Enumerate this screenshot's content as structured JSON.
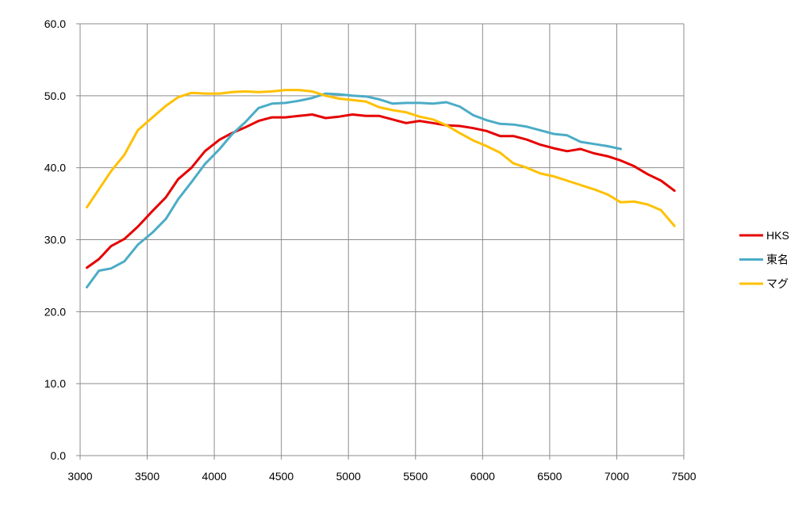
{
  "chart_data": {
    "type": "line",
    "title": "",
    "xlabel": "",
    "ylabel": "",
    "xlim": [
      3000,
      7500
    ],
    "ylim": [
      0,
      60
    ],
    "x_ticks": [
      3000,
      3500,
      4000,
      4500,
      5000,
      5500,
      6000,
      6500,
      7000,
      7500
    ],
    "x_tick_labels": [
      "3000",
      "3500",
      "4000",
      "4500",
      "5000",
      "5500",
      "6000",
      "6500",
      "7000",
      "7500"
    ],
    "y_ticks": [
      0,
      10,
      20,
      30,
      40,
      50,
      60
    ],
    "y_tick_labels": [
      "0.0",
      "10.0",
      "20.0",
      "30.0",
      "40.0",
      "50.0",
      "60.0"
    ],
    "grid": true,
    "legend_position": "right",
    "series": [
      {
        "name": "HKS",
        "color": "#e60000",
        "points": [
          [
            3050,
            26.1
          ],
          [
            3140,
            27.3
          ],
          [
            3230,
            29.1
          ],
          [
            3330,
            30.1
          ],
          [
            3430,
            31.8
          ],
          [
            3540,
            34.0
          ],
          [
            3640,
            35.9
          ],
          [
            3730,
            38.4
          ],
          [
            3830,
            40.0
          ],
          [
            3930,
            42.3
          ],
          [
            4040,
            43.9
          ],
          [
            4130,
            44.8
          ],
          [
            4230,
            45.6
          ],
          [
            4330,
            46.5
          ],
          [
            4430,
            47.0
          ],
          [
            4530,
            47.0
          ],
          [
            4630,
            47.2
          ],
          [
            4730,
            47.4
          ],
          [
            4830,
            46.9
          ],
          [
            4930,
            47.1
          ],
          [
            5030,
            47.4
          ],
          [
            5130,
            47.2
          ],
          [
            5230,
            47.2
          ],
          [
            5330,
            46.7
          ],
          [
            5430,
            46.2
          ],
          [
            5530,
            46.5
          ],
          [
            5630,
            46.2
          ],
          [
            5730,
            45.9
          ],
          [
            5830,
            45.8
          ],
          [
            5930,
            45.5
          ],
          [
            6030,
            45.1
          ],
          [
            6130,
            44.4
          ],
          [
            6230,
            44.4
          ],
          [
            6330,
            43.9
          ],
          [
            6430,
            43.2
          ],
          [
            6530,
            42.7
          ],
          [
            6630,
            42.3
          ],
          [
            6730,
            42.6
          ],
          [
            6830,
            42.0
          ],
          [
            6930,
            41.6
          ],
          [
            7030,
            41.0
          ],
          [
            7130,
            40.2
          ],
          [
            7230,
            39.1
          ],
          [
            7330,
            38.2
          ],
          [
            7430,
            36.8
          ]
        ]
      },
      {
        "name": "東名",
        "color": "#4bacc6",
        "points": [
          [
            3050,
            23.4
          ],
          [
            3140,
            25.7
          ],
          [
            3230,
            26.0
          ],
          [
            3330,
            27.0
          ],
          [
            3430,
            29.3
          ],
          [
            3540,
            31.0
          ],
          [
            3640,
            32.9
          ],
          [
            3730,
            35.6
          ],
          [
            3830,
            38.0
          ],
          [
            3930,
            40.5
          ],
          [
            4040,
            42.6
          ],
          [
            4130,
            44.6
          ],
          [
            4230,
            46.3
          ],
          [
            4330,
            48.3
          ],
          [
            4430,
            48.9
          ],
          [
            4530,
            49.0
          ],
          [
            4630,
            49.3
          ],
          [
            4730,
            49.7
          ],
          [
            4830,
            50.3
          ],
          [
            4930,
            50.2
          ],
          [
            5030,
            50.0
          ],
          [
            5130,
            49.9
          ],
          [
            5230,
            49.5
          ],
          [
            5330,
            48.9
          ],
          [
            5430,
            49.0
          ],
          [
            5530,
            49.0
          ],
          [
            5630,
            48.9
          ],
          [
            5730,
            49.1
          ],
          [
            5830,
            48.5
          ],
          [
            5930,
            47.3
          ],
          [
            6030,
            46.6
          ],
          [
            6130,
            46.1
          ],
          [
            6230,
            46.0
          ],
          [
            6330,
            45.7
          ],
          [
            6430,
            45.2
          ],
          [
            6530,
            44.7
          ],
          [
            6630,
            44.5
          ],
          [
            6730,
            43.6
          ],
          [
            6830,
            43.3
          ],
          [
            6930,
            43.0
          ],
          [
            7030,
            42.6
          ]
        ]
      },
      {
        "name": "マグ",
        "color": "#ffc000",
        "points": [
          [
            3050,
            34.5
          ],
          [
            3140,
            37.0
          ],
          [
            3230,
            39.5
          ],
          [
            3330,
            41.8
          ],
          [
            3430,
            45.2
          ],
          [
            3540,
            47.0
          ],
          [
            3640,
            48.6
          ],
          [
            3730,
            49.8
          ],
          [
            3830,
            50.4
          ],
          [
            3930,
            50.3
          ],
          [
            4040,
            50.3
          ],
          [
            4130,
            50.5
          ],
          [
            4230,
            50.6
          ],
          [
            4330,
            50.5
          ],
          [
            4430,
            50.6
          ],
          [
            4530,
            50.8
          ],
          [
            4630,
            50.8
          ],
          [
            4730,
            50.6
          ],
          [
            4830,
            50.0
          ],
          [
            4930,
            49.6
          ],
          [
            5030,
            49.4
          ],
          [
            5130,
            49.2
          ],
          [
            5230,
            48.4
          ],
          [
            5330,
            48.0
          ],
          [
            5430,
            47.7
          ],
          [
            5530,
            47.1
          ],
          [
            5630,
            46.7
          ],
          [
            5730,
            45.9
          ],
          [
            5830,
            44.8
          ],
          [
            5930,
            43.8
          ],
          [
            6030,
            43.0
          ],
          [
            6130,
            42.1
          ],
          [
            6230,
            40.6
          ],
          [
            6330,
            40.0
          ],
          [
            6430,
            39.2
          ],
          [
            6530,
            38.8
          ],
          [
            6630,
            38.2
          ],
          [
            6730,
            37.6
          ],
          [
            6830,
            37.0
          ],
          [
            6930,
            36.3
          ],
          [
            7030,
            35.2
          ],
          [
            7130,
            35.3
          ],
          [
            7230,
            34.9
          ],
          [
            7330,
            34.1
          ],
          [
            7430,
            31.9
          ]
        ]
      }
    ]
  }
}
